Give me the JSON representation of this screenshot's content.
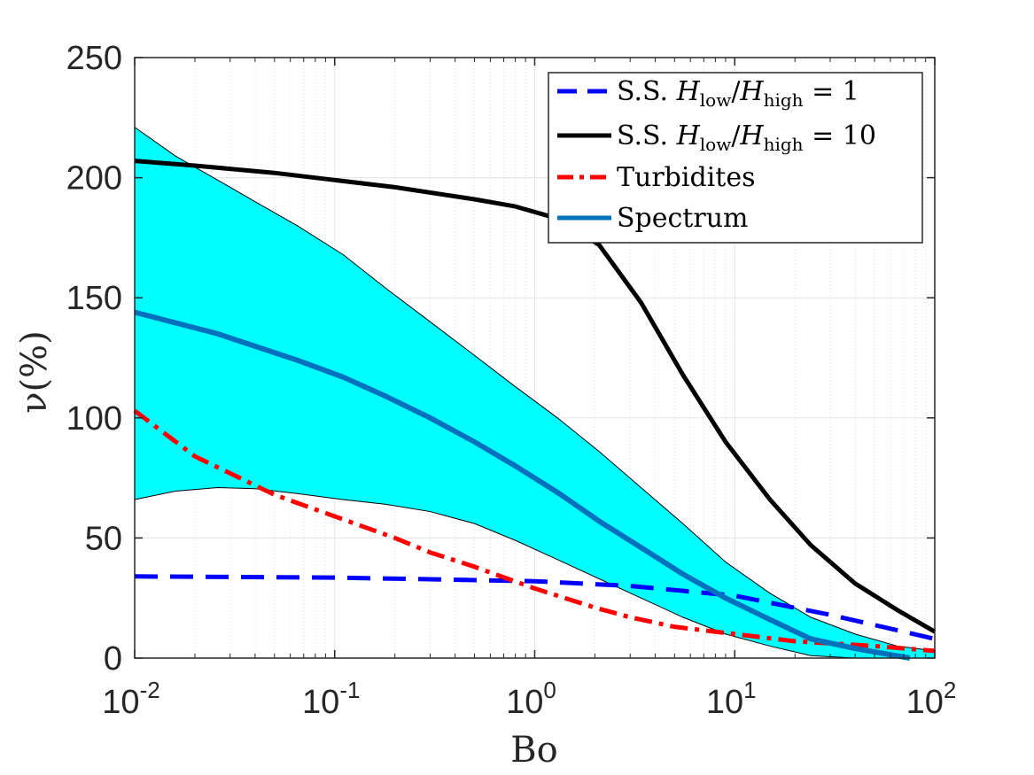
{
  "chart_data": {
    "type": "line",
    "xscale": "log",
    "xlim": [
      0.01,
      100
    ],
    "ylim": [
      0,
      250
    ],
    "xlabel": "Bo",
    "ylabel": "ν(%)",
    "grid": true,
    "legend_position": "top-right",
    "y_ticks": [
      "0",
      "50",
      "100",
      "150",
      "200",
      "250"
    ],
    "y_tick_values": [
      0,
      50,
      100,
      150,
      200,
      250
    ],
    "x_ticks": [
      {
        "value": 0.01,
        "base": "10",
        "exp": "-2"
      },
      {
        "value": 0.1,
        "base": "10",
        "exp": "-1"
      },
      {
        "value": 1,
        "base": "10",
        "exp": "0"
      },
      {
        "value": 10,
        "base": "10",
        "exp": "1"
      },
      {
        "value": 100,
        "base": "10",
        "exp": "2"
      }
    ],
    "band": {
      "name": "Spectrum range",
      "color": "#00ffff",
      "x": [
        0.01,
        0.016,
        0.026,
        0.04,
        0.065,
        0.11,
        0.18,
        0.3,
        0.5,
        0.8,
        1.3,
        2.1,
        3.4,
        5.5,
        9,
        15,
        24,
        40,
        65,
        100
      ],
      "upper": [
        221,
        209,
        199,
        190,
        180,
        168,
        154,
        140,
        126,
        113,
        100,
        86,
        71,
        56,
        40,
        27,
        17,
        10,
        5,
        3
      ],
      "lower": [
        66,
        69.5,
        71,
        70.5,
        68.5,
        66,
        64,
        61,
        56,
        49,
        41,
        33,
        25,
        17,
        10,
        5,
        1,
        0,
        0,
        0
      ]
    },
    "series": [
      {
        "name": "S.S. H_low/H_high = 1",
        "color": "#0000ff",
        "style": "dashed",
        "x": [
          0.01,
          0.1,
          1,
          3,
          10,
          30,
          100
        ],
        "values": [
          34,
          33.5,
          32,
          30,
          26,
          18,
          8
        ]
      },
      {
        "name": "S.S. H_low/H_high = 10",
        "color": "#000000",
        "style": "solid",
        "x": [
          0.01,
          0.02,
          0.05,
          0.1,
          0.2,
          0.5,
          0.8,
          1.3,
          2.1,
          3.4,
          5.5,
          9,
          15,
          24,
          40,
          65,
          100
        ],
        "values": [
          207,
          205,
          202,
          199,
          196,
          191,
          188,
          183,
          172,
          148,
          118,
          90,
          66,
          47,
          31,
          20,
          11
        ]
      },
      {
        "name": "Turbidites",
        "color": "#ff0000",
        "style": "dashdot",
        "x": [
          0.01,
          0.02,
          0.05,
          0.1,
          0.2,
          0.3,
          0.5,
          1,
          2,
          3,
          5,
          10,
          20,
          50,
          100
        ],
        "values": [
          103,
          84,
          68,
          59,
          50,
          44,
          38,
          29,
          21,
          17,
          13,
          10,
          7,
          5,
          3
        ]
      },
      {
        "name": "Spectrum",
        "color": "#0072bd",
        "style": "solid",
        "x": [
          0.01,
          0.026,
          0.065,
          0.11,
          0.18,
          0.3,
          0.5,
          0.8,
          1.3,
          2.1,
          3.4,
          5.5,
          9,
          15,
          24,
          40,
          75
        ],
        "values": [
          144,
          135,
          124,
          117,
          109,
          100,
          90,
          80,
          69,
          57,
          46,
          35,
          25,
          16,
          8,
          4,
          0
        ]
      }
    ],
    "legend": [
      {
        "prefix": "S.S. ",
        "math": {
          "a": "H",
          "a_sub": "low",
          "b": "H",
          "b_sub": "high",
          "eq": "= 1"
        },
        "color": "#0000ff",
        "style": "dashed"
      },
      {
        "prefix": "S.S. ",
        "math": {
          "a": "H",
          "a_sub": "low",
          "b": "H",
          "b_sub": "high",
          "eq": "= 10"
        },
        "color": "#000000",
        "style": "solid"
      },
      {
        "prefix": "Turbidites",
        "color": "#ff0000",
        "style": "dashdot"
      },
      {
        "prefix": "Spectrum",
        "color": "#0072bd",
        "style": "solid"
      }
    ]
  }
}
